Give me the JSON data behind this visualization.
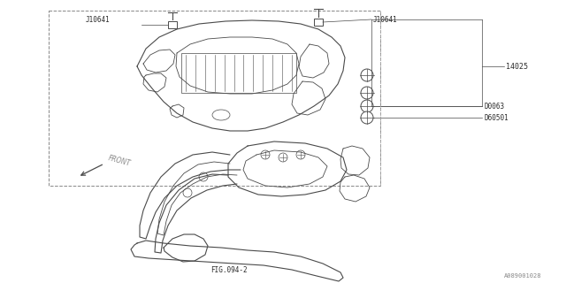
{
  "bg_color": "#ffffff",
  "line_color": "#4a4a4a",
  "text_color": "#2a2a2a",
  "labels": {
    "J10641_left": "J10641",
    "J10641_right": "J10641",
    "part_14025": "14025",
    "part_D0063": "D0063",
    "part_D60501": "D60501",
    "front_label": "FRONT",
    "fig_label": "FIG.094-2",
    "corner_label": "A089001028"
  },
  "figsize": [
    6.4,
    3.2
  ],
  "dpi": 100
}
